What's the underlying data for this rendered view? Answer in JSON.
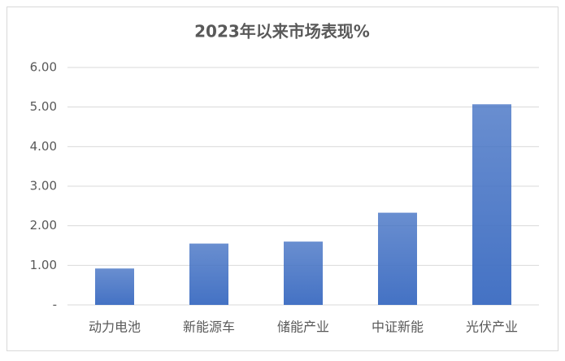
{
  "chart_data": {
    "type": "bar",
    "title": "2023年以来市场表现%",
    "categories": [
      "动力电池",
      "新能源车",
      "储能产业",
      "中证新能",
      "光伏产业"
    ],
    "values": [
      0.92,
      1.55,
      1.6,
      2.33,
      5.07
    ],
    "color": "#4472c4",
    "ylim": [
      0,
      6
    ],
    "yticks": [
      {
        "value": 0,
        "label": "-"
      },
      {
        "value": 1,
        "label": "1.00"
      },
      {
        "value": 2,
        "label": "2.00"
      },
      {
        "value": 3,
        "label": "3.00"
      },
      {
        "value": 4,
        "label": "4.00"
      },
      {
        "value": 5,
        "label": "5.00"
      },
      {
        "value": 6,
        "label": "6.00"
      }
    ],
    "grid": true
  }
}
